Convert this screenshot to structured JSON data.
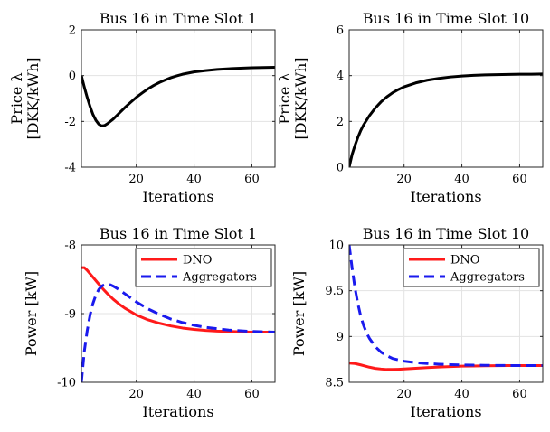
{
  "chart_data": [
    {
      "type": "line",
      "title": "Bus 16 in Time Slot 1",
      "xlabel": "Iterations",
      "ylabel_line1": "Price λ",
      "ylabel_line2": "[DKK/kWh]",
      "xlim": [
        1,
        68
      ],
      "ylim": [
        -4,
        2
      ],
      "xticks": [
        20,
        40,
        60
      ],
      "yticks": [
        -4,
        -2,
        0,
        2
      ],
      "grid": true,
      "series": [
        {
          "color": "#000000",
          "dash": "solid",
          "x": [
            1,
            2,
            3,
            4,
            5,
            6,
            7,
            8,
            9,
            10,
            12,
            14,
            16,
            18,
            20,
            22,
            24,
            26,
            28,
            30,
            32,
            34,
            36,
            38,
            40,
            44,
            48,
            52,
            56,
            60,
            64,
            68
          ],
          "y": [
            0,
            -0.5,
            -0.95,
            -1.35,
            -1.7,
            -1.95,
            -2.12,
            -2.2,
            -2.18,
            -2.1,
            -1.9,
            -1.65,
            -1.4,
            -1.17,
            -0.95,
            -0.76,
            -0.58,
            -0.43,
            -0.3,
            -0.19,
            -0.09,
            -0.01,
            0.06,
            0.11,
            0.16,
            0.22,
            0.27,
            0.3,
            0.32,
            0.34,
            0.35,
            0.36
          ]
        }
      ]
    },
    {
      "type": "line",
      "title": "Bus 16 in Time Slot 10",
      "xlabel": "Iterations",
      "ylabel_line1": "Price λ",
      "ylabel_line2": "[DKK/kWh]",
      "xlim": [
        1,
        68
      ],
      "ylim": [
        0,
        6
      ],
      "xticks": [
        20,
        40,
        60
      ],
      "yticks": [
        0,
        2,
        4,
        6
      ],
      "grid": true,
      "series": [
        {
          "color": "#000000",
          "dash": "solid",
          "x": [
            1,
            2,
            3,
            4,
            5,
            6,
            8,
            10,
            12,
            14,
            16,
            18,
            20,
            24,
            28,
            32,
            36,
            40,
            44,
            48,
            52,
            56,
            60,
            64,
            68
          ],
          "y": [
            0,
            0.55,
            0.95,
            1.3,
            1.6,
            1.85,
            2.25,
            2.58,
            2.85,
            3.07,
            3.25,
            3.39,
            3.51,
            3.68,
            3.8,
            3.88,
            3.94,
            3.98,
            4.01,
            4.03,
            4.04,
            4.05,
            4.06,
            4.06,
            4.07
          ]
        }
      ]
    },
    {
      "type": "line",
      "title": "Bus 16 in Time Slot 1",
      "xlabel": "Iterations",
      "ylabel": "Power [kW]",
      "xlim": [
        1,
        68
      ],
      "ylim": [
        -10,
        -8
      ],
      "xticks": [
        20,
        40,
        60
      ],
      "yticks": [
        -10,
        -9,
        -8
      ],
      "grid": true,
      "legend": "top-right",
      "series": [
        {
          "name": "DNO",
          "color": "#ff1a1a",
          "dash": "solid",
          "x": [
            1,
            2,
            3,
            4,
            6,
            8,
            10,
            12,
            14,
            16,
            18,
            20,
            24,
            28,
            32,
            36,
            40,
            44,
            48,
            52,
            56,
            60,
            64,
            68
          ],
          "y": [
            -8.33,
            -8.33,
            -8.37,
            -8.42,
            -8.52,
            -8.62,
            -8.71,
            -8.79,
            -8.86,
            -8.92,
            -8.97,
            -9.02,
            -9.09,
            -9.14,
            -9.18,
            -9.21,
            -9.23,
            -9.245,
            -9.255,
            -9.26,
            -9.265,
            -9.27,
            -9.27,
            -9.27
          ]
        },
        {
          "name": "Aggregators",
          "color": "#1a1aee",
          "dash": "dashed",
          "x": [
            1,
            2,
            3,
            4,
            5,
            6,
            7,
            8,
            9,
            10,
            11,
            12,
            14,
            16,
            18,
            20,
            24,
            28,
            32,
            36,
            40,
            44,
            48,
            52,
            56,
            60,
            64,
            68
          ],
          "y": [
            -10,
            -9.55,
            -9.25,
            -9.02,
            -8.85,
            -8.73,
            -8.65,
            -8.6,
            -8.58,
            -8.575,
            -8.58,
            -8.6,
            -8.65,
            -8.71,
            -8.77,
            -8.83,
            -8.93,
            -9.01,
            -9.08,
            -9.13,
            -9.17,
            -9.2,
            -9.22,
            -9.24,
            -9.25,
            -9.26,
            -9.265,
            -9.27
          ]
        }
      ]
    },
    {
      "type": "line",
      "title": "Bus 16 in Time Slot 10",
      "xlabel": "Iterations",
      "ylabel": "Power [kW]",
      "xlim": [
        1,
        68
      ],
      "ylim": [
        8.5,
        10
      ],
      "xticks": [
        20,
        40,
        60
      ],
      "yticks": [
        8.5,
        9,
        9.5,
        10
      ],
      "grid": true,
      "legend": "top-right",
      "series": [
        {
          "name": "DNO",
          "color": "#ff1a1a",
          "dash": "solid",
          "x": [
            1,
            3,
            5,
            8,
            10,
            12,
            14,
            16,
            18,
            20,
            24,
            28,
            32,
            36,
            40,
            44,
            48,
            52,
            56,
            60,
            64,
            68
          ],
          "y": [
            8.71,
            8.705,
            8.69,
            8.665,
            8.652,
            8.645,
            8.64,
            8.64,
            8.642,
            8.645,
            8.653,
            8.66,
            8.667,
            8.672,
            8.676,
            8.678,
            8.68,
            8.681,
            8.682,
            8.682,
            8.682,
            8.682
          ]
        },
        {
          "name": "Aggregators",
          "color": "#1a1aee",
          "dash": "dashed",
          "x": [
            1,
            2,
            3,
            4,
            5,
            6,
            7,
            8,
            10,
            12,
            14,
            16,
            18,
            20,
            24,
            28,
            32,
            36,
            40,
            44,
            48,
            52,
            56,
            60,
            64,
            68
          ],
          "y": [
            10,
            9.75,
            9.53,
            9.36,
            9.22,
            9.12,
            9.04,
            8.98,
            8.89,
            8.83,
            8.79,
            8.76,
            8.745,
            8.73,
            8.715,
            8.705,
            8.698,
            8.693,
            8.689,
            8.687,
            8.685,
            8.684,
            8.683,
            8.683,
            8.682,
            8.682
          ]
        }
      ]
    }
  ]
}
